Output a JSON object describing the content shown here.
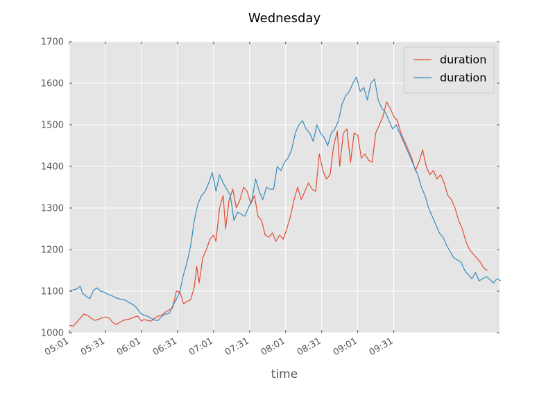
{
  "chart_data": {
    "type": "line",
    "title": "Wednesday",
    "xlabel": "time",
    "ylabel": "",
    "ylim": [
      1000,
      1700
    ],
    "yticks": [
      1000,
      1100,
      1200,
      1300,
      1400,
      1500,
      1600,
      1700
    ],
    "xticks": [
      "05:01",
      "05:31",
      "06:01",
      "06:31",
      "07:01",
      "07:31",
      "08:01",
      "08:31",
      "09:01",
      "09:31"
    ],
    "grid": true,
    "legend_position": "top-right",
    "series": [
      {
        "name": "duration",
        "color": "#E24A33",
        "points": [
          [
            "05:01",
            1018
          ],
          [
            "05:04",
            1016
          ],
          [
            "05:07",
            1025
          ],
          [
            "05:10",
            1035
          ],
          [
            "05:13",
            1045
          ],
          [
            "05:16",
            1042
          ],
          [
            "05:19",
            1035
          ],
          [
            "05:22",
            1030
          ],
          [
            "05:25",
            1032
          ],
          [
            "05:28",
            1036
          ],
          [
            "05:31",
            1038
          ],
          [
            "05:34",
            1036
          ],
          [
            "05:37",
            1025
          ],
          [
            "05:40",
            1020
          ],
          [
            "05:43",
            1025
          ],
          [
            "05:46",
            1030
          ],
          [
            "05:49",
            1032
          ],
          [
            "05:52",
            1034
          ],
          [
            "05:55",
            1038
          ],
          [
            "05:58",
            1040
          ],
          [
            "06:01",
            1028
          ],
          [
            "06:03",
            1032
          ],
          [
            "06:06",
            1030
          ],
          [
            "06:09",
            1028
          ],
          [
            "06:12",
            1035
          ],
          [
            "06:15",
            1040
          ],
          [
            "06:18",
            1042
          ],
          [
            "06:21",
            1050
          ],
          [
            "06:24",
            1055
          ],
          [
            "06:27",
            1060
          ],
          [
            "06:30",
            1100
          ],
          [
            "06:33",
            1098
          ],
          [
            "06:36",
            1070
          ],
          [
            "06:39",
            1075
          ],
          [
            "06:42",
            1080
          ],
          [
            "06:45",
            1110
          ],
          [
            "06:47",
            1160
          ],
          [
            "06:49",
            1120
          ],
          [
            "06:52",
            1180
          ],
          [
            "06:55",
            1200
          ],
          [
            "06:58",
            1225
          ],
          [
            "07:01",
            1235
          ],
          [
            "07:03",
            1220
          ],
          [
            "07:06",
            1300
          ],
          [
            "07:09",
            1330
          ],
          [
            "07:11",
            1250
          ],
          [
            "07:14",
            1320
          ],
          [
            "07:17",
            1345
          ],
          [
            "07:20",
            1300
          ],
          [
            "07:23",
            1320
          ],
          [
            "07:26",
            1350
          ],
          [
            "07:29",
            1340
          ],
          [
            "07:32",
            1310
          ],
          [
            "07:35",
            1330
          ],
          [
            "07:38",
            1280
          ],
          [
            "07:41",
            1270
          ],
          [
            "07:44",
            1235
          ],
          [
            "07:47",
            1230
          ],
          [
            "07:50",
            1240
          ],
          [
            "07:53",
            1220
          ],
          [
            "07:56",
            1235
          ],
          [
            "07:59",
            1225
          ],
          [
            "08:02",
            1250
          ],
          [
            "08:05",
            1280
          ],
          [
            "08:08",
            1320
          ],
          [
            "08:11",
            1350
          ],
          [
            "08:14",
            1320
          ],
          [
            "08:17",
            1340
          ],
          [
            "08:20",
            1360
          ],
          [
            "08:23",
            1345
          ],
          [
            "08:26",
            1340
          ],
          [
            "08:29",
            1430
          ],
          [
            "08:32",
            1390
          ],
          [
            "08:35",
            1370
          ],
          [
            "08:38",
            1380
          ],
          [
            "08:41",
            1450
          ],
          [
            "08:44",
            1485
          ],
          [
            "08:46",
            1400
          ],
          [
            "08:49",
            1480
          ],
          [
            "08:52",
            1490
          ],
          [
            "08:55",
            1410
          ],
          [
            "08:58",
            1480
          ],
          [
            "09:01",
            1475
          ],
          [
            "09:04",
            1420
          ],
          [
            "09:07",
            1430
          ],
          [
            "09:10",
            1415
          ],
          [
            "09:13",
            1410
          ],
          [
            "09:16",
            1480
          ],
          [
            "09:19",
            1500
          ],
          [
            "09:22",
            1520
          ],
          [
            "09:25",
            1555
          ],
          [
            "09:28",
            1540
          ],
          [
            "09:31",
            1520
          ],
          [
            "09:34",
            1510
          ],
          [
            "09:37",
            1480
          ],
          [
            "09:40",
            1460
          ],
          [
            "09:43",
            1440
          ],
          [
            "09:46",
            1420
          ],
          [
            "09:49",
            1390
          ],
          [
            "09:52",
            1410
          ],
          [
            "09:55",
            1440
          ],
          [
            "09:58",
            1400
          ],
          [
            "10:01",
            1380
          ],
          [
            "10:04",
            1390
          ],
          [
            "10:07",
            1370
          ],
          [
            "10:10",
            1380
          ],
          [
            "10:13",
            1360
          ],
          [
            "10:16",
            1330
          ],
          [
            "10:19",
            1320
          ],
          [
            "10:22",
            1300
          ],
          [
            "10:25",
            1270
          ],
          [
            "10:28",
            1250
          ],
          [
            "10:31",
            1220
          ],
          [
            "10:34",
            1200
          ],
          [
            "10:37",
            1190
          ],
          [
            "10:40",
            1180
          ],
          [
            "10:43",
            1170
          ],
          [
            "10:46",
            1155
          ],
          [
            "10:49",
            1150
          ]
        ]
      },
      {
        "name": "duration",
        "color": "#348ABD",
        "points": [
          [
            "05:01",
            1100
          ],
          [
            "05:04",
            1103
          ],
          [
            "05:07",
            1105
          ],
          [
            "05:10",
            1112
          ],
          [
            "05:12",
            1095
          ],
          [
            "05:15",
            1088
          ],
          [
            "05:18",
            1082
          ],
          [
            "05:21",
            1102
          ],
          [
            "05:24",
            1108
          ],
          [
            "05:27",
            1100
          ],
          [
            "05:30",
            1098
          ],
          [
            "05:33",
            1092
          ],
          [
            "05:36",
            1090
          ],
          [
            "05:39",
            1085
          ],
          [
            "05:42",
            1082
          ],
          [
            "05:45",
            1080
          ],
          [
            "05:48",
            1078
          ],
          [
            "05:51",
            1072
          ],
          [
            "05:54",
            1068
          ],
          [
            "05:57",
            1060
          ],
          [
            "06:00",
            1048
          ],
          [
            "06:03",
            1042
          ],
          [
            "06:06",
            1040
          ],
          [
            "06:09",
            1035
          ],
          [
            "06:12",
            1030
          ],
          [
            "06:15",
            1030
          ],
          [
            "06:18",
            1040
          ],
          [
            "06:21",
            1045
          ],
          [
            "06:24",
            1046
          ],
          [
            "06:27",
            1065
          ],
          [
            "06:30",
            1080
          ],
          [
            "06:33",
            1100
          ],
          [
            "06:36",
            1140
          ],
          [
            "06:39",
            1170
          ],
          [
            "06:42",
            1210
          ],
          [
            "06:45",
            1270
          ],
          [
            "06:48",
            1310
          ],
          [
            "06:51",
            1330
          ],
          [
            "06:54",
            1340
          ],
          [
            "06:57",
            1360
          ],
          [
            "07:00",
            1385
          ],
          [
            "07:03",
            1340
          ],
          [
            "07:06",
            1380
          ],
          [
            "07:09",
            1360
          ],
          [
            "07:12",
            1345
          ],
          [
            "07:15",
            1330
          ],
          [
            "07:18",
            1270
          ],
          [
            "07:21",
            1290
          ],
          [
            "07:24",
            1285
          ],
          [
            "07:27",
            1280
          ],
          [
            "07:30",
            1300
          ],
          [
            "07:33",
            1320
          ],
          [
            "07:36",
            1370
          ],
          [
            "07:39",
            1340
          ],
          [
            "07:42",
            1320
          ],
          [
            "07:45",
            1350
          ],
          [
            "07:48",
            1345
          ],
          [
            "07:51",
            1345
          ],
          [
            "07:54",
            1400
          ],
          [
            "07:57",
            1390
          ],
          [
            "08:00",
            1410
          ],
          [
            "08:03",
            1420
          ],
          [
            "08:06",
            1440
          ],
          [
            "08:09",
            1480
          ],
          [
            "08:12",
            1500
          ],
          [
            "08:15",
            1510
          ],
          [
            "08:18",
            1490
          ],
          [
            "08:21",
            1480
          ],
          [
            "08:24",
            1460
          ],
          [
            "08:27",
            1500
          ],
          [
            "08:30",
            1480
          ],
          [
            "08:33",
            1470
          ],
          [
            "08:36",
            1450
          ],
          [
            "08:39",
            1480
          ],
          [
            "08:42",
            1490
          ],
          [
            "08:45",
            1510
          ],
          [
            "08:48",
            1550
          ],
          [
            "08:51",
            1570
          ],
          [
            "08:54",
            1580
          ],
          [
            "08:57",
            1600
          ],
          [
            "09:00",
            1615
          ],
          [
            "09:03",
            1580
          ],
          [
            "09:06",
            1590
          ],
          [
            "09:09",
            1560
          ],
          [
            "09:12",
            1600
          ],
          [
            "09:15",
            1610
          ],
          [
            "09:18",
            1560
          ],
          [
            "09:21",
            1540
          ],
          [
            "09:24",
            1530
          ],
          [
            "09:27",
            1510
          ],
          [
            "09:30",
            1490
          ],
          [
            "09:33",
            1500
          ],
          [
            "09:36",
            1480
          ],
          [
            "09:39",
            1460
          ],
          [
            "09:42",
            1440
          ],
          [
            "09:45",
            1420
          ],
          [
            "09:48",
            1400
          ],
          [
            "09:51",
            1380
          ],
          [
            "09:54",
            1350
          ],
          [
            "09:57",
            1330
          ],
          [
            "10:00",
            1300
          ],
          [
            "10:03",
            1280
          ],
          [
            "10:06",
            1260
          ],
          [
            "10:09",
            1240
          ],
          [
            "10:12",
            1230
          ],
          [
            "10:15",
            1210
          ],
          [
            "10:18",
            1195
          ],
          [
            "10:21",
            1180
          ],
          [
            "10:24",
            1175
          ],
          [
            "10:27",
            1170
          ],
          [
            "10:30",
            1150
          ],
          [
            "10:33",
            1140
          ],
          [
            "10:36",
            1130
          ],
          [
            "10:39",
            1145
          ],
          [
            "10:42",
            1125
          ],
          [
            "10:45",
            1130
          ],
          [
            "10:48",
            1135
          ],
          [
            "10:51",
            1128
          ],
          [
            "10:54",
            1120
          ],
          [
            "10:57",
            1130
          ],
          [
            "11:00",
            1125
          ]
        ]
      }
    ]
  }
}
